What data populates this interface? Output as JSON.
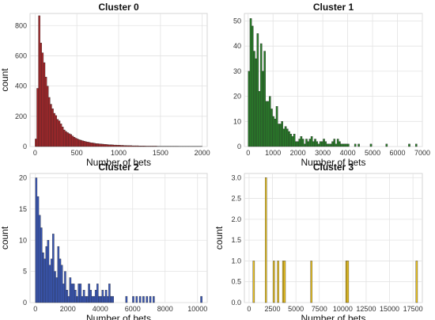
{
  "chart_data": [
    {
      "type": "bar",
      "chart_kind": "histogram",
      "title": "Cluster 0",
      "xlabel": "Number of bets",
      "ylabel": "count",
      "xlim": [
        -60,
        2060
      ],
      "ylim": [
        0,
        880
      ],
      "xticks": [
        0,
        500,
        1000,
        1500,
        2000
      ],
      "yticks": [
        0,
        200,
        400,
        600,
        800
      ],
      "bar_color": "#a6272a",
      "edge_color": "#222222",
      "grid": true,
      "bin_width": 20,
      "x": [
        10,
        30,
        50,
        70,
        90,
        110,
        130,
        150,
        170,
        190,
        210,
        230,
        250,
        270,
        290,
        310,
        330,
        350,
        370,
        390,
        410,
        430,
        450,
        470,
        490,
        510,
        530,
        550,
        570,
        590,
        610,
        630,
        650,
        670,
        690,
        710,
        730,
        750,
        770,
        790,
        810,
        830,
        850,
        870,
        890,
        910,
        930,
        950,
        970,
        990,
        1010,
        1030,
        1050,
        1070,
        1090,
        1110,
        1130,
        1150,
        1170,
        1190,
        1210,
        1230,
        1250,
        1270,
        1290,
        1310,
        1330,
        1350,
        1370,
        1390,
        1410,
        1430,
        1450,
        1470,
        1490,
        1510,
        1530,
        1550,
        1570,
        1590,
        1610,
        1630,
        1650,
        1670,
        1690,
        1710,
        1730,
        1750,
        1770,
        1790,
        1810,
        1830,
        1850,
        1870,
        1890,
        1910,
        1930,
        1950,
        1970,
        1990
      ],
      "values": [
        50,
        385,
        865,
        685,
        620,
        555,
        460,
        400,
        325,
        280,
        250,
        220,
        205,
        180,
        170,
        150,
        130,
        110,
        100,
        92,
        85,
        80,
        70,
        62,
        55,
        50,
        45,
        42,
        38,
        35,
        32,
        30,
        28,
        25,
        24,
        22,
        20,
        19,
        18,
        17,
        16,
        15,
        14,
        13,
        12,
        12,
        11,
        10,
        10,
        9,
        9,
        8,
        8,
        7,
        7,
        6,
        6,
        6,
        5,
        5,
        5,
        5,
        4,
        4,
        4,
        4,
        3,
        3,
        3,
        3,
        3,
        3,
        3,
        2,
        2,
        2,
        2,
        2,
        2,
        2,
        2,
        2,
        2,
        2,
        2,
        2,
        1,
        1,
        1,
        1,
        1,
        1,
        1,
        1,
        1,
        1,
        1,
        1,
        1,
        1
      ]
    },
    {
      "type": "bar",
      "chart_kind": "histogram",
      "title": "Cluster 1",
      "xlabel": "Number of bets",
      "ylabel": "",
      "xlim": [
        -150,
        7000
      ],
      "ylim": [
        0,
        53
      ],
      "xticks": [
        0,
        1000,
        2000,
        3000,
        4000,
        5000,
        6000,
        7000
      ],
      "yticks": [
        0,
        10,
        20,
        30,
        40,
        50
      ],
      "bar_color": "#2a7d2a",
      "edge_color": "#222222",
      "grid": true,
      "bin_width": 70,
      "x": [
        35,
        105,
        175,
        245,
        315,
        385,
        455,
        525,
        595,
        665,
        735,
        805,
        875,
        945,
        1015,
        1085,
        1155,
        1225,
        1295,
        1365,
        1435,
        1505,
        1575,
        1645,
        1715,
        1785,
        1855,
        1925,
        1995,
        2065,
        2135,
        2205,
        2275,
        2345,
        2415,
        2485,
        2555,
        2625,
        2695,
        2765,
        2835,
        2905,
        2975,
        3045,
        3115,
        3185,
        3255,
        3325,
        3395,
        3465,
        3535,
        3605,
        3675,
        3745,
        3815,
        3885,
        3955,
        4025,
        4305,
        4445,
        4935,
        5565,
        6475,
        6755
      ],
      "values": [
        30,
        51,
        48,
        38,
        35,
        45,
        22,
        41,
        30,
        38,
        18,
        18,
        20,
        15,
        12,
        11,
        16,
        9,
        9,
        10,
        7,
        8,
        7,
        6,
        5,
        4,
        5,
        2,
        2,
        3,
        4,
        3,
        1,
        3,
        2,
        3,
        4,
        2,
        3,
        2,
        1,
        2,
        2,
        3,
        2,
        1,
        1,
        1,
        2,
        3,
        1,
        3,
        2,
        1,
        1,
        1,
        1,
        1,
        1,
        1,
        1,
        1,
        1,
        1
      ]
    },
    {
      "type": "bar",
      "chart_kind": "histogram",
      "title": "Cluster 2",
      "xlabel": "Number of bets",
      "ylabel": "count",
      "xlim": [
        -330,
        10600
      ],
      "ylim": [
        0,
        20.7
      ],
      "xticks": [
        0,
        2000,
        4000,
        6000,
        8000,
        10000
      ],
      "yticks": [
        0,
        5,
        10,
        15,
        20
      ],
      "bar_color": "#3a58b8",
      "edge_color": "#222222",
      "grid": true,
      "bin_width": 105,
      "x": [
        53,
        158,
        263,
        368,
        473,
        578,
        683,
        788,
        893,
        998,
        1103,
        1208,
        1313,
        1418,
        1523,
        1628,
        1733,
        1838,
        1943,
        2048,
        2153,
        2258,
        2363,
        2468,
        2573,
        2678,
        2783,
        2888,
        2993,
        3098,
        3203,
        3308,
        3413,
        3518,
        3623,
        3728,
        3833,
        3938,
        4043,
        4148,
        4253,
        4358,
        4463,
        4568,
        4673,
        4778,
        5618,
        6038,
        6248,
        6458,
        6668,
        6878,
        7088,
        7298,
        10238
      ],
      "values": [
        20,
        17,
        14,
        12,
        8,
        7,
        9,
        10,
        6,
        7,
        11,
        5,
        4,
        9,
        7,
        6,
        3,
        5,
        2,
        1,
        4,
        3,
        3,
        2,
        1,
        3,
        3,
        1,
        2,
        1,
        1,
        3,
        2,
        1,
        1,
        2,
        3,
        1,
        1,
        2,
        1,
        2,
        1,
        3,
        1,
        1,
        1,
        1,
        1,
        1,
        1,
        1,
        1,
        1,
        1
      ]
    },
    {
      "type": "bar",
      "chart_kind": "histogram",
      "title": "Cluster 3",
      "xlabel": "Number of bets",
      "ylabel": "count",
      "xlim": [
        -500,
        18500
      ],
      "ylim": [
        0,
        3.1
      ],
      "xticks": [
        0,
        2500,
        5000,
        7500,
        10000,
        12500,
        15000,
        17500
      ],
      "yticks": [
        0.0,
        0.5,
        1.0,
        1.5,
        2.0,
        2.5,
        3.0
      ],
      "bar_color": "#e7c023",
      "edge_color": "#222222",
      "grid": true,
      "bin_width": 180,
      "x": [
        500,
        1800,
        2650,
        3100,
        3650,
        3800,
        6650,
        10400,
        10550,
        17900
      ],
      "values": [
        1,
        3,
        1,
        1,
        1,
        1,
        1,
        1,
        1,
        1
      ]
    }
  ]
}
